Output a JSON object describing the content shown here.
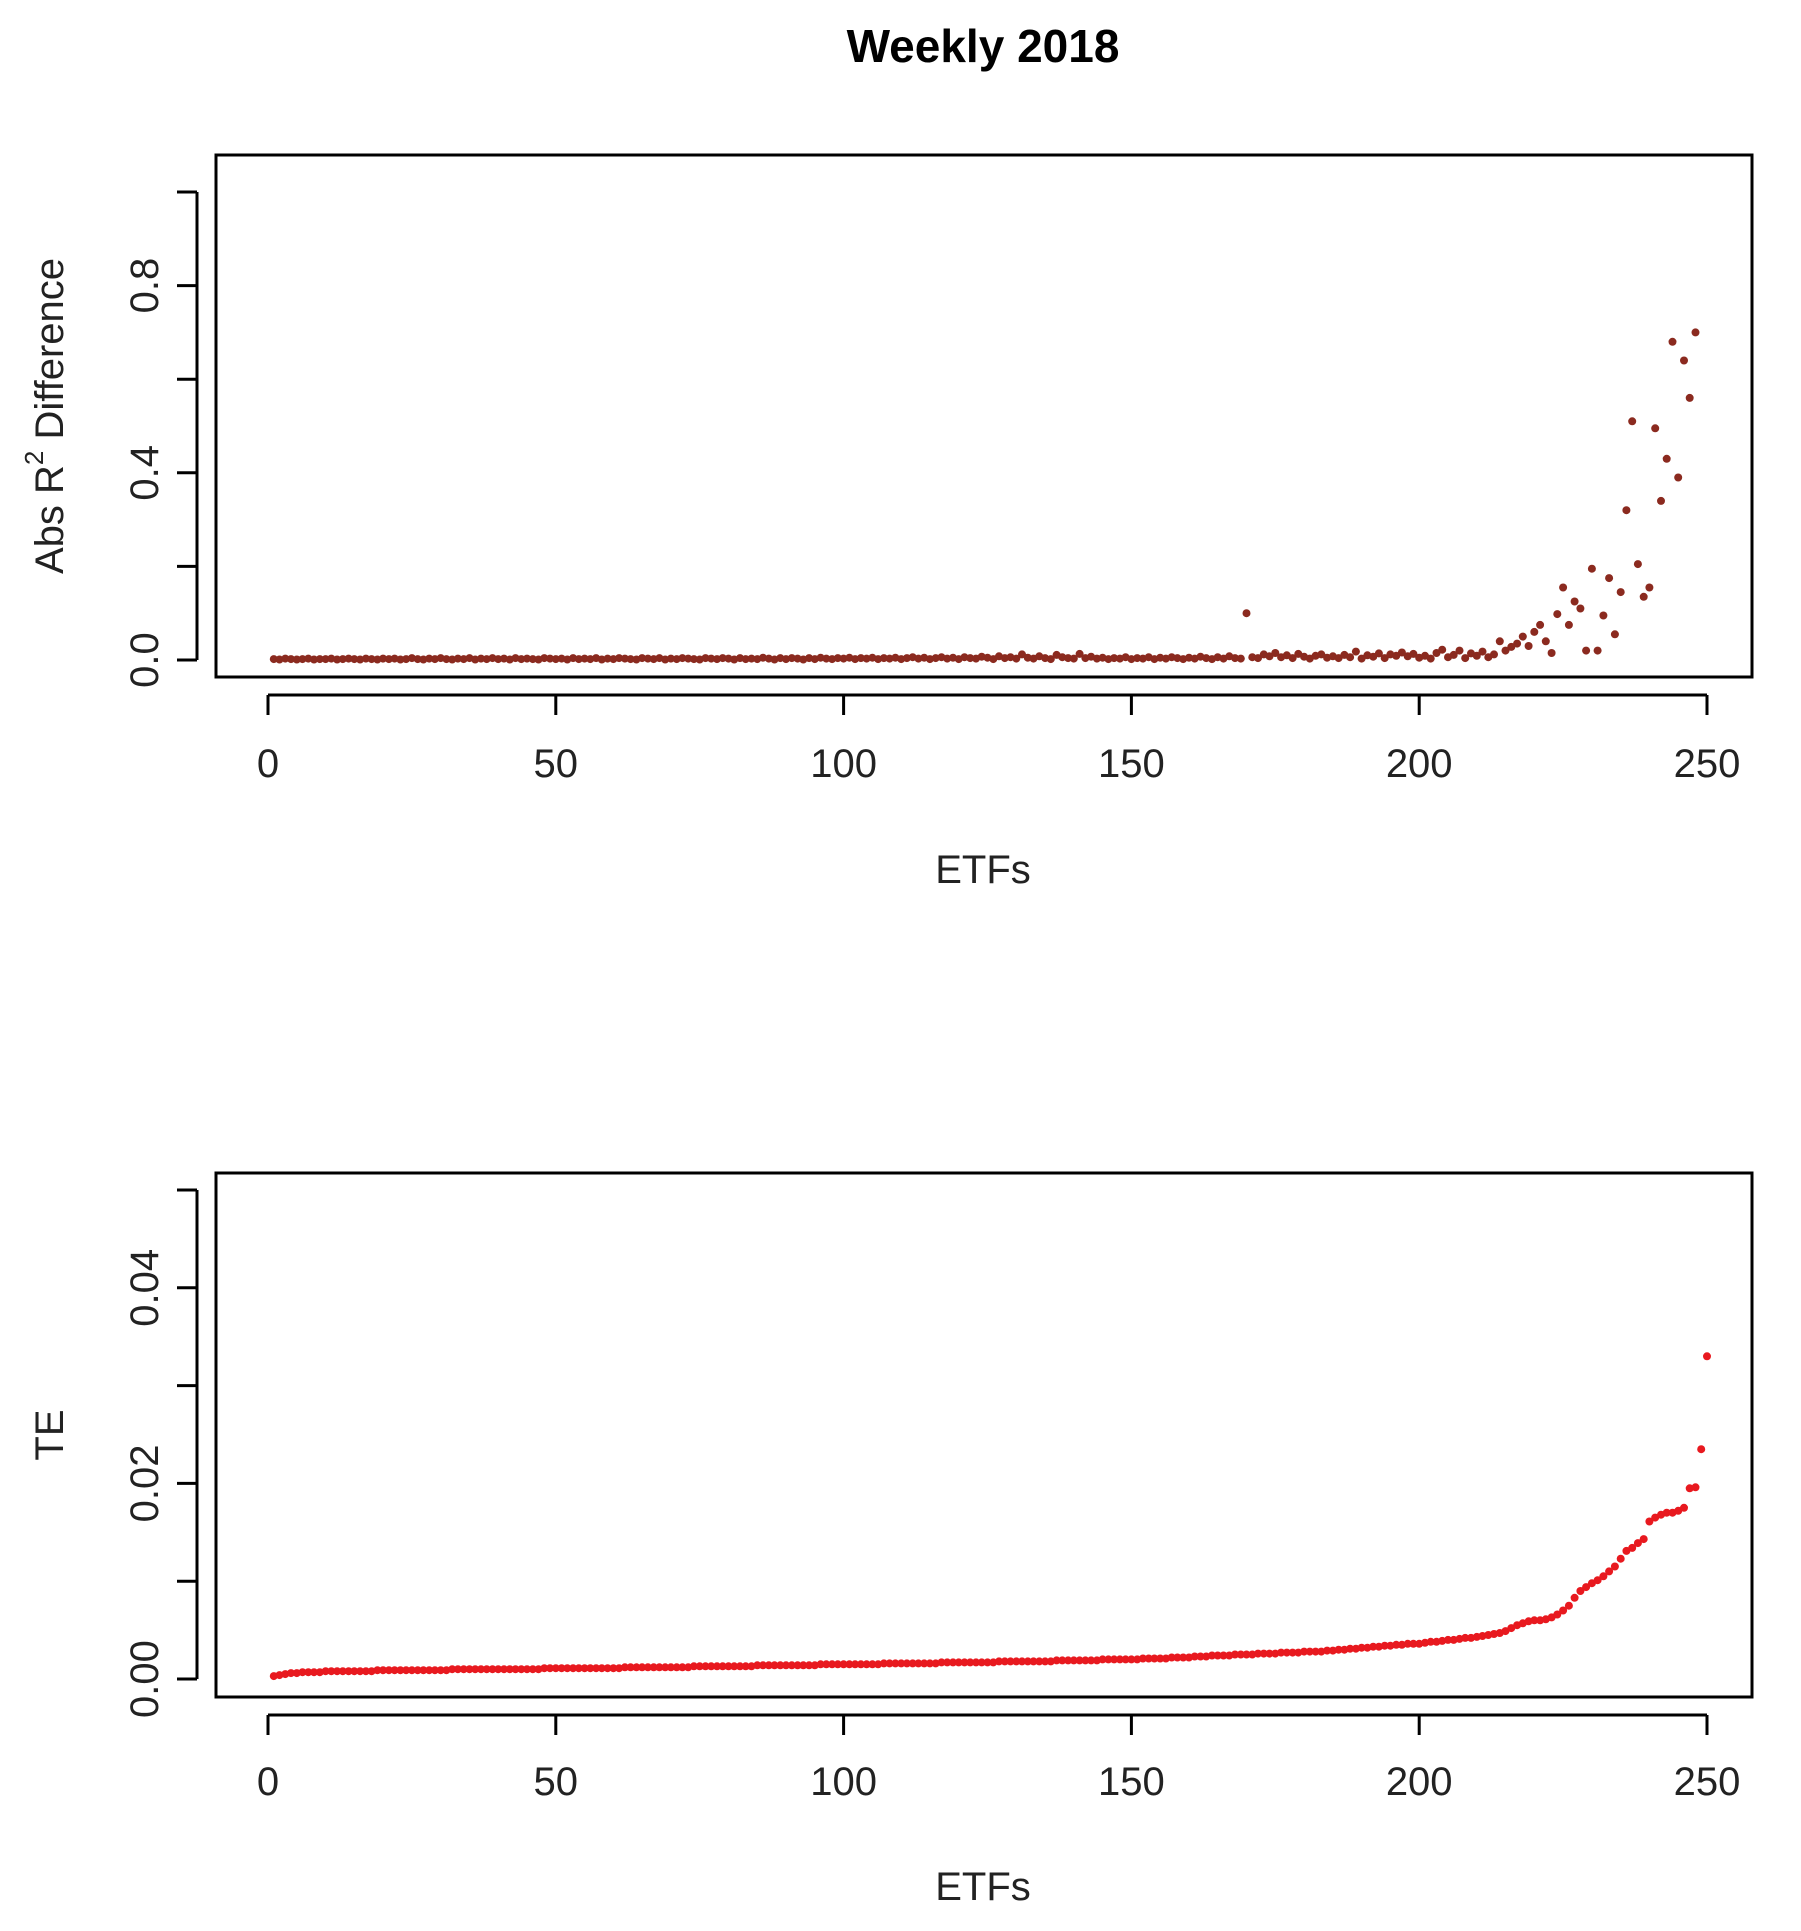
{
  "figure": {
    "title": "Weekly 2018"
  },
  "chart_data": [
    {
      "type": "scatter",
      "title": "Weekly 2018",
      "xlabel": "ETFs",
      "ylabel_prefix": "Abs R",
      "ylabel_sup": "2",
      "ylabel_suffix": " Difference",
      "xlim": [
        0,
        250
      ],
      "ylim": [
        0,
        1
      ],
      "xticks": [
        0,
        50,
        100,
        150,
        200,
        250
      ],
      "yticks": [
        0.0,
        0.2,
        0.4,
        0.6,
        0.8,
        1.0
      ],
      "ytick_labels": [
        "0.0",
        "",
        "0.4",
        "",
        "0.8",
        ""
      ],
      "xtick_labels": [
        "0",
        "50",
        "100",
        "150",
        "200",
        "250"
      ],
      "point_color": "#8b2a1f",
      "series": [
        {
          "x": [
            1,
            2,
            3,
            4,
            5,
            6,
            7,
            8,
            9,
            10,
            11,
            12,
            13,
            14,
            15,
            16,
            17,
            18,
            19,
            20,
            21,
            22,
            23,
            24,
            25,
            26,
            27,
            28,
            29,
            30,
            31,
            32,
            33,
            34,
            35,
            36,
            37,
            38,
            39,
            40,
            41,
            42,
            43,
            44,
            45,
            46,
            47,
            48,
            49,
            50,
            51,
            52,
            53,
            54,
            55,
            56,
            57,
            58,
            59,
            60,
            61,
            62,
            63,
            64,
            65,
            66,
            67,
            68,
            69,
            70,
            71,
            72,
            73,
            74,
            75,
            76,
            77,
            78,
            79,
            80,
            81,
            82,
            83,
            84,
            85,
            86,
            87,
            88,
            89,
            90,
            91,
            92,
            93,
            94,
            95,
            96,
            97,
            98,
            99,
            100,
            101,
            102,
            103,
            104,
            105,
            106,
            107,
            108,
            109,
            110,
            111,
            112,
            113,
            114,
            115,
            116,
            117,
            118,
            119,
            120,
            121,
            122,
            123,
            124,
            125,
            126,
            127,
            128,
            129,
            130,
            131,
            132,
            133,
            134,
            135,
            136,
            137,
            138,
            139,
            140,
            141,
            142,
            143,
            144,
            145,
            146,
            147,
            148,
            149,
            150,
            151,
            152,
            153,
            154,
            155,
            156,
            157,
            158,
            159,
            160,
            161,
            162,
            163,
            164,
            165,
            166,
            167,
            168,
            169,
            170,
            171,
            172,
            173,
            174,
            175,
            176,
            177,
            178,
            179,
            180,
            181,
            182,
            183,
            184,
            185,
            186,
            187,
            188,
            189,
            190,
            191,
            192,
            193,
            194,
            195,
            196,
            197,
            198,
            199,
            200,
            201,
            202,
            203,
            204,
            205,
            206,
            207,
            208,
            209,
            210,
            211,
            212,
            213,
            214,
            215,
            216,
            217,
            218,
            219,
            220,
            221,
            222,
            223,
            224,
            225,
            226,
            227,
            228,
            229,
            230,
            231,
            232,
            233,
            234,
            235,
            236,
            237,
            238,
            239,
            240,
            241,
            242,
            243,
            244,
            245,
            246,
            247,
            248
          ],
          "y": [
            0.002,
            0.001,
            0.003,
            0.002,
            0.001,
            0.002,
            0.003,
            0.001,
            0.002,
            0.002,
            0.003,
            0.001,
            0.002,
            0.003,
            0.002,
            0.001,
            0.003,
            0.002,
            0.001,
            0.003,
            0.002,
            0.003,
            0.001,
            0.002,
            0.004,
            0.002,
            0.001,
            0.003,
            0.002,
            0.004,
            0.002,
            0.001,
            0.003,
            0.002,
            0.004,
            0.001,
            0.003,
            0.002,
            0.004,
            0.002,
            0.003,
            0.001,
            0.004,
            0.002,
            0.003,
            0.002,
            0.001,
            0.004,
            0.003,
            0.002,
            0.003,
            0.001,
            0.004,
            0.002,
            0.003,
            0.002,
            0.004,
            0.001,
            0.003,
            0.002,
            0.004,
            0.003,
            0.002,
            0.001,
            0.004,
            0.003,
            0.002,
            0.004,
            0.001,
            0.003,
            0.002,
            0.004,
            0.003,
            0.002,
            0.001,
            0.004,
            0.003,
            0.002,
            0.004,
            0.003,
            0.001,
            0.004,
            0.002,
            0.003,
            0.002,
            0.005,
            0.003,
            0.001,
            0.004,
            0.002,
            0.004,
            0.003,
            0.001,
            0.004,
            0.002,
            0.005,
            0.003,
            0.002,
            0.004,
            0.003,
            0.005,
            0.002,
            0.004,
            0.003,
            0.005,
            0.002,
            0.004,
            0.003,
            0.005,
            0.002,
            0.004,
            0.006,
            0.003,
            0.005,
            0.002,
            0.004,
            0.006,
            0.003,
            0.005,
            0.002,
            0.006,
            0.004,
            0.003,
            0.007,
            0.005,
            0.002,
            0.008,
            0.004,
            0.006,
            0.003,
            0.012,
            0.005,
            0.003,
            0.008,
            0.004,
            0.002,
            0.011,
            0.006,
            0.004,
            0.003,
            0.013,
            0.004,
            0.007,
            0.003,
            0.005,
            0.002,
            0.004,
            0.003,
            0.006,
            0.002,
            0.004,
            0.003,
            0.006,
            0.002,
            0.005,
            0.003,
            0.006,
            0.004,
            0.002,
            0.005,
            0.003,
            0.007,
            0.004,
            0.002,
            0.006,
            0.003,
            0.008,
            0.004,
            0.003,
            0.1,
            0.006,
            0.004,
            0.012,
            0.008,
            0.015,
            0.006,
            0.01,
            0.004,
            0.013,
            0.007,
            0.003,
            0.009,
            0.012,
            0.005,
            0.008,
            0.004,
            0.011,
            0.006,
            0.018,
            0.003,
            0.01,
            0.007,
            0.014,
            0.004,
            0.012,
            0.009,
            0.016,
            0.008,
            0.013,
            0.005,
            0.009,
            0.003,
            0.015,
            0.022,
            0.006,
            0.011,
            0.02,
            0.004,
            0.014,
            0.009,
            0.018,
            0.006,
            0.012,
            0.04,
            0.02,
            0.028,
            0.035,
            0.05,
            0.03,
            0.06,
            0.075,
            0.04,
            0.015,
            0.098,
            0.155,
            0.075,
            0.125,
            0.11,
            0.02,
            0.195,
            0.02,
            0.095,
            0.175,
            0.055,
            0.145,
            0.32,
            0.51,
            0.205,
            0.135,
            0.155,
            0.495,
            0.34,
            0.43,
            0.68,
            0.39,
            0.64,
            0.56,
            0.7
          ]
        }
      ]
    },
    {
      "type": "scatter",
      "title": "",
      "xlabel": "ETFs",
      "ylabel": "TE",
      "xlim": [
        0,
        250
      ],
      "ylim": [
        0,
        0.05
      ],
      "xticks": [
        0,
        50,
        100,
        150,
        200,
        250
      ],
      "yticks": [
        0.0,
        0.01,
        0.02,
        0.03,
        0.04,
        0.05
      ],
      "ytick_labels": [
        "0.00",
        "",
        "0.02",
        "",
        "0.04",
        ""
      ],
      "xtick_labels": [
        "0",
        "50",
        "100",
        "150",
        "200",
        "250"
      ],
      "point_color": "#e8191f",
      "series": [
        {
          "x_start": 1,
          "y": [
            0.0003,
            0.0004,
            0.0005,
            0.0006,
            0.0006,
            0.0007,
            0.0007,
            0.0007,
            0.0007,
            0.0008,
            0.0008,
            0.0008,
            0.0008,
            0.0008,
            0.0008,
            0.0008,
            0.0008,
            0.0008,
            0.0009,
            0.0009,
            0.0009,
            0.0009,
            0.0009,
            0.0009,
            0.0009,
            0.0009,
            0.0009,
            0.0009,
            0.0009,
            0.0009,
            0.0009,
            0.001,
            0.001,
            0.001,
            0.001,
            0.001,
            0.001,
            0.001,
            0.001,
            0.001,
            0.001,
            0.001,
            0.001,
            0.001,
            0.001,
            0.001,
            0.001,
            0.0011,
            0.0011,
            0.0011,
            0.0011,
            0.0011,
            0.0011,
            0.0011,
            0.0011,
            0.0011,
            0.0011,
            0.0011,
            0.0011,
            0.0011,
            0.0011,
            0.0012,
            0.0012,
            0.0012,
            0.0012,
            0.0012,
            0.0012,
            0.0012,
            0.0012,
            0.0012,
            0.0012,
            0.0012,
            0.0012,
            0.0013,
            0.0013,
            0.0013,
            0.0013,
            0.0013,
            0.0013,
            0.0013,
            0.0013,
            0.0013,
            0.0013,
            0.0013,
            0.0014,
            0.0014,
            0.0014,
            0.0014,
            0.0014,
            0.0014,
            0.0014,
            0.0014,
            0.0014,
            0.0014,
            0.0014,
            0.0015,
            0.0015,
            0.0015,
            0.0015,
            0.0015,
            0.0015,
            0.0015,
            0.0015,
            0.0015,
            0.0015,
            0.0015,
            0.0016,
            0.0016,
            0.0016,
            0.0016,
            0.0016,
            0.0016,
            0.0016,
            0.0016,
            0.0016,
            0.0016,
            0.0017,
            0.0017,
            0.0017,
            0.0017,
            0.0017,
            0.0017,
            0.0017,
            0.0017,
            0.0017,
            0.0017,
            0.0018,
            0.0018,
            0.0018,
            0.0018,
            0.0018,
            0.0018,
            0.0018,
            0.0018,
            0.0018,
            0.0018,
            0.0019,
            0.0019,
            0.0019,
            0.0019,
            0.0019,
            0.0019,
            0.0019,
            0.0019,
            0.002,
            0.002,
            0.002,
            0.002,
            0.002,
            0.002,
            0.002,
            0.0021,
            0.0021,
            0.0021,
            0.0021,
            0.0021,
            0.0022,
            0.0022,
            0.0022,
            0.0022,
            0.0023,
            0.0023,
            0.0023,
            0.0024,
            0.0024,
            0.0024,
            0.0024,
            0.0025,
            0.0025,
            0.0025,
            0.0025,
            0.0026,
            0.0026,
            0.0026,
            0.0026,
            0.0027,
            0.0027,
            0.0027,
            0.0027,
            0.0028,
            0.0028,
            0.0028,
            0.0028,
            0.0029,
            0.0029,
            0.003,
            0.003,
            0.0031,
            0.0031,
            0.0032,
            0.0032,
            0.0033,
            0.0033,
            0.0034,
            0.0034,
            0.0035,
            0.0035,
            0.0036,
            0.0036,
            0.0036,
            0.0037,
            0.0038,
            0.0038,
            0.0039,
            0.004,
            0.004,
            0.0041,
            0.0042,
            0.0042,
            0.0043,
            0.0044,
            0.0045,
            0.0046,
            0.0047,
            0.0049,
            0.0052,
            0.0055,
            0.0057,
            0.0059,
            0.006,
            0.006,
            0.0061,
            0.0063,
            0.0066,
            0.007,
            0.0075,
            0.0083,
            0.009,
            0.0094,
            0.0098,
            0.0101,
            0.0105,
            0.011,
            0.0115,
            0.0123,
            0.0131,
            0.0134,
            0.0139,
            0.0143,
            0.0161,
            0.0165,
            0.0168,
            0.017,
            0.017,
            0.0172,
            0.0175,
            0.0195,
            0.0196,
            0.0235,
            0.033
          ]
        }
      ]
    }
  ]
}
